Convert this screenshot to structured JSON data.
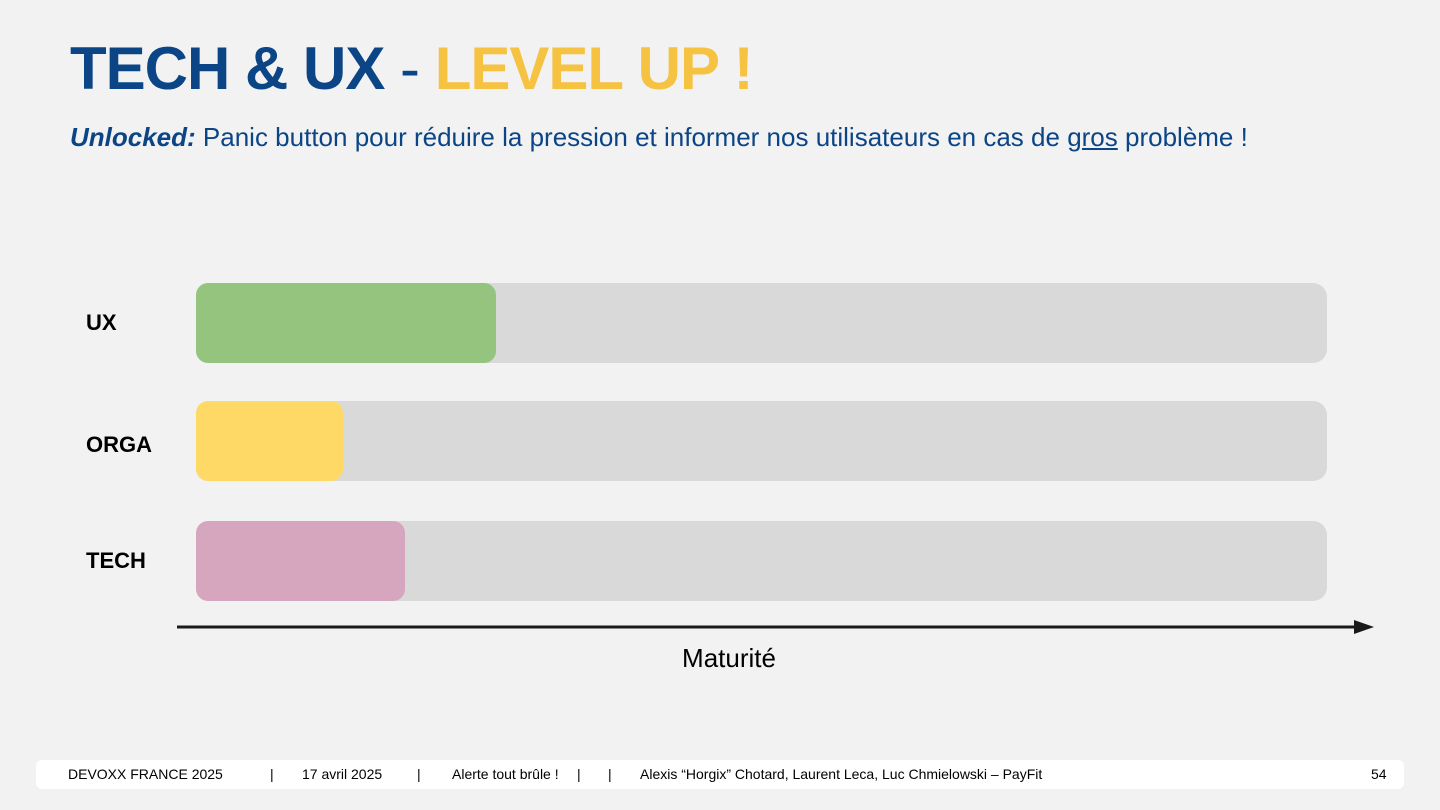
{
  "title": {
    "part1": "TECH & UX",
    "separator": "-",
    "part2": "LEVEL UP !"
  },
  "subtitle": {
    "lead": "Unlocked:",
    "text_before": "Panic button pour réduire la pression et informer nos utilisateurs en cas de",
    "underlined": "gros",
    "text_after": "problème !"
  },
  "chart_data": {
    "type": "bar",
    "orientation": "horizontal",
    "categories": [
      "UX",
      "ORGA",
      "TECH"
    ],
    "values": [
      0.265,
      0.13,
      0.185
    ],
    "value_unit": "fraction of maximum maturity",
    "xlabel": "Maturité",
    "xlim": [
      0,
      1
    ],
    "colors": {
      "UX": "#94c47d",
      "ORGA": "#fed966",
      "TECH": "#d5a6bd",
      "track": "#d9d9d9"
    },
    "grid": false,
    "legend": "none"
  },
  "footer": {
    "event": "DEVOXX FRANCE 2025",
    "sep": "|",
    "date": "17 avril 2025",
    "talk": "Alerte tout brûle !",
    "talk_sep": "|",
    "authors": "Alexis “Horgix” Chotard, Laurent Leca, Luc Chmielowski – PayFit",
    "page_number": "54"
  }
}
